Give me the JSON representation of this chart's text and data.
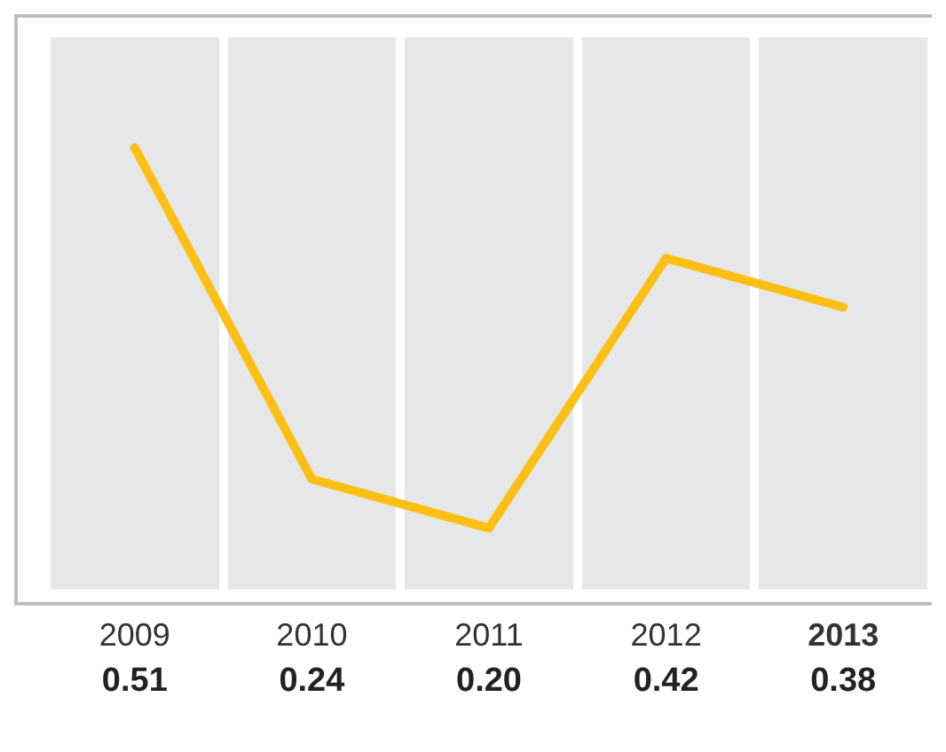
{
  "chart_data": {
    "type": "line",
    "categories": [
      "2009",
      "2010",
      "2011",
      "2012",
      "2013"
    ],
    "series": [
      {
        "color": "#fcbf16",
        "values": [
          0.51,
          0.24,
          0.2,
          0.42,
          0.38
        ],
        "value_labels": [
          "0.51",
          "0.24",
          "0.20",
          "0.42",
          "0.38"
        ]
      }
    ],
    "grid": "x",
    "legend": false,
    "marker": "none",
    "line_style": "solid"
  }
}
